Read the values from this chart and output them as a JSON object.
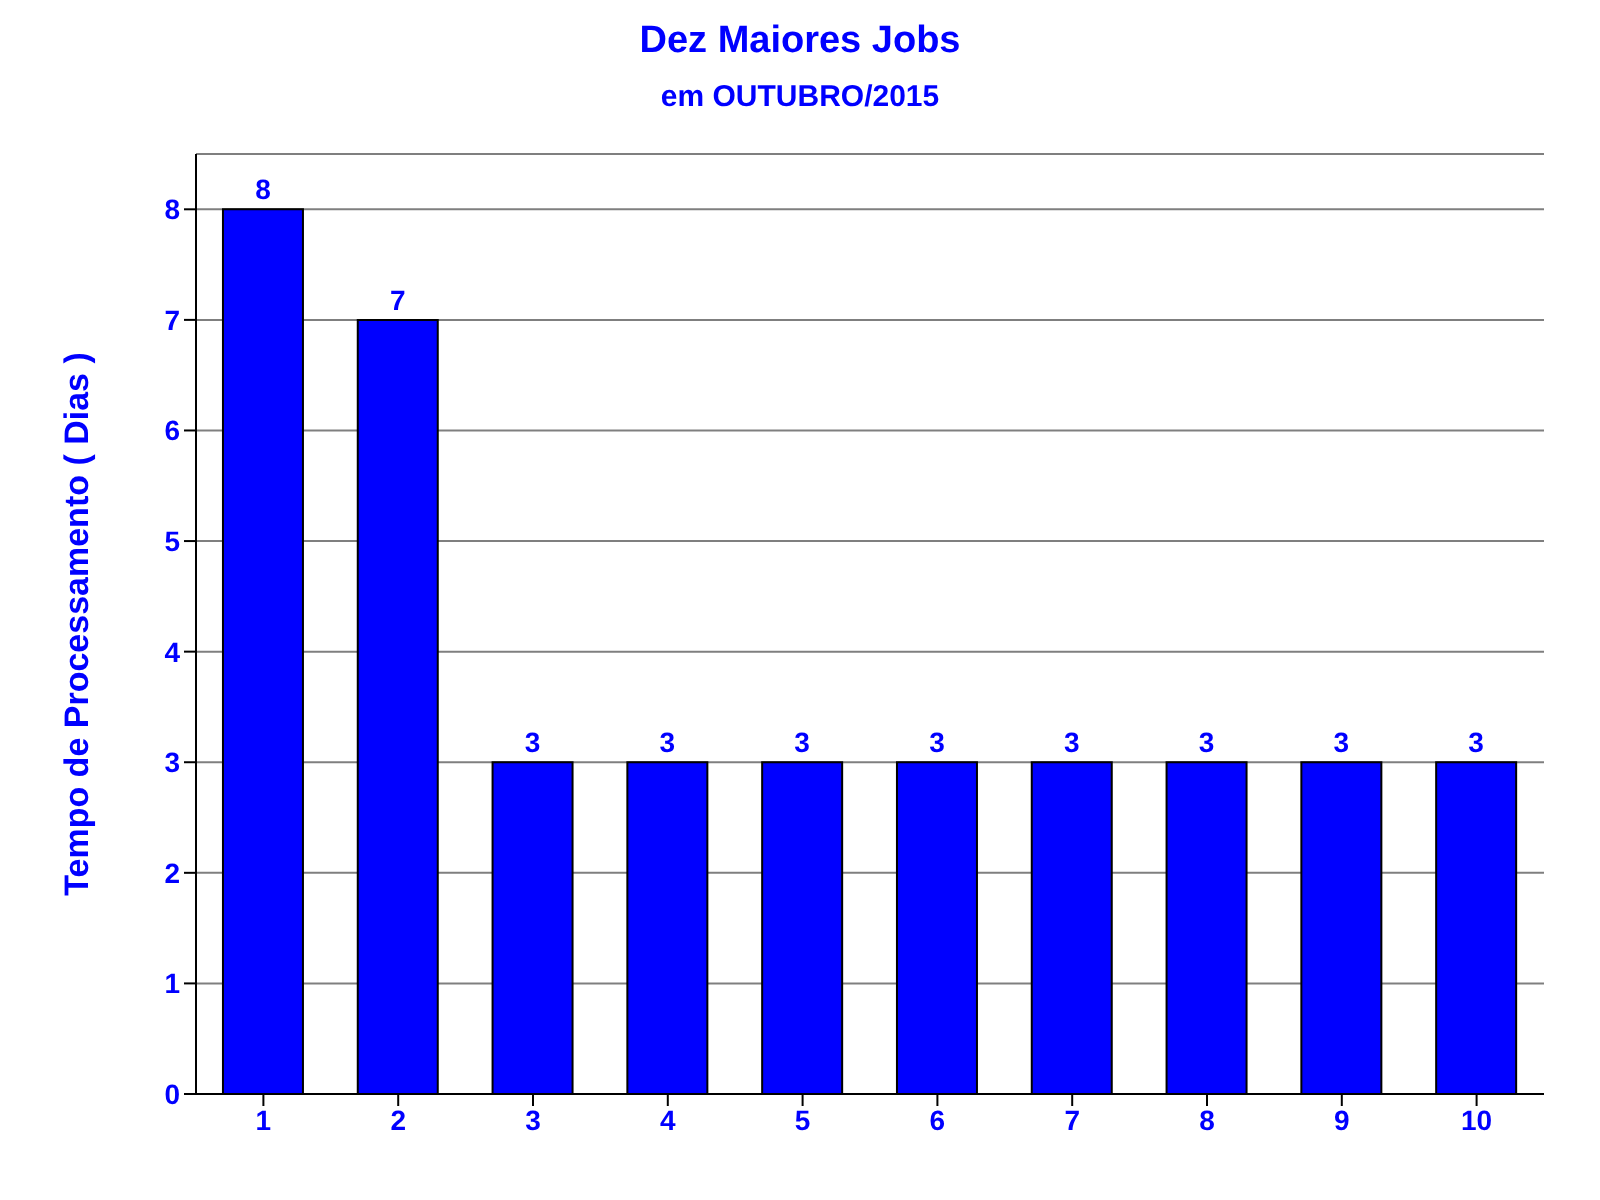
{
  "chart_data": {
    "type": "bar",
    "title": "Dez Maiores Jobs",
    "subtitle": "em OUTUBRO/2015",
    "ylabel": "Tempo de Processamento ( Dias )",
    "categories": [
      "1",
      "2",
      "3",
      "4",
      "5",
      "6",
      "7",
      "8",
      "9",
      "10"
    ],
    "values": [
      8,
      7,
      3,
      3,
      3,
      3,
      3,
      3,
      3,
      3
    ],
    "color": "#0000ff",
    "ylim": [
      0,
      8.5
    ],
    "yticks": [
      0,
      1,
      2,
      3,
      4,
      5,
      6,
      7,
      8
    ],
    "grid": "y",
    "data_labels": true
  }
}
